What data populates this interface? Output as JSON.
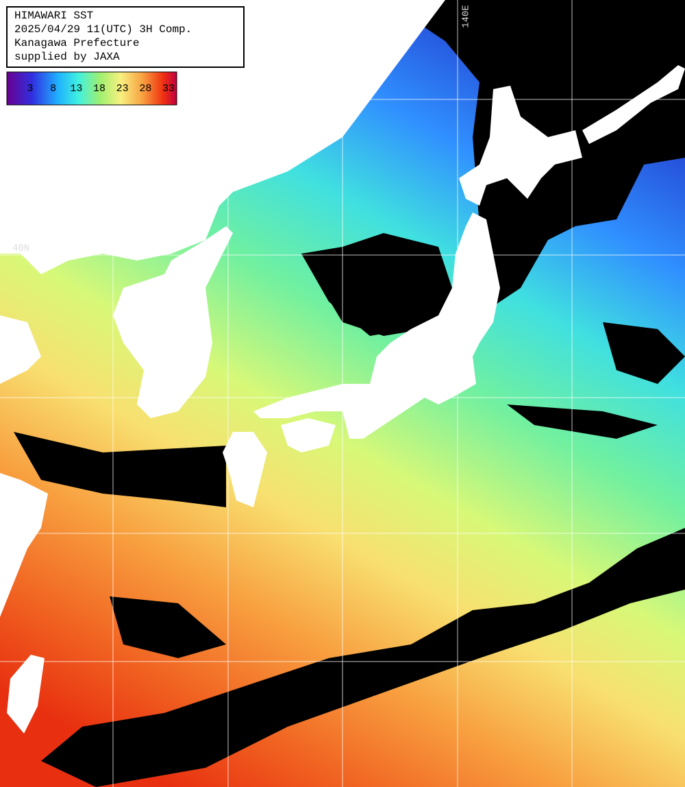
{
  "header": {
    "lines": [
      "HIMAWARI SST",
      "2025/04/29 11(UTC) 3H Comp.",
      "Kanagawa Prefecture",
      "supplied by JAXA"
    ]
  },
  "colorbar": {
    "labels": [
      3,
      8,
      13,
      18,
      23,
      28,
      33
    ]
  },
  "grid_labels": {
    "latitude": "40N",
    "longitude": "140E"
  }
}
